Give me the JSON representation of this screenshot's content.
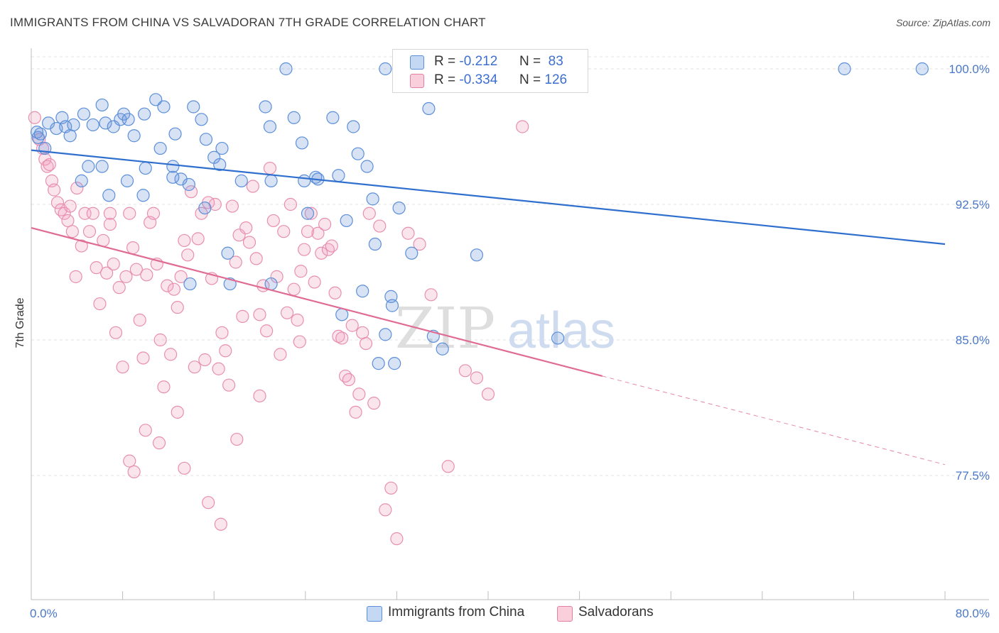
{
  "header": {
    "title": "IMMIGRANTS FROM CHINA VS SALVADORAN 7TH GRADE CORRELATION CHART",
    "source": "Source: ZipAtlas.com"
  },
  "watermark": {
    "zip": "ZIP",
    "atlas": "atlas"
  },
  "legend_top": {
    "rows": [
      {
        "r_label": "R =",
        "r_value": "-0.212",
        "n_label": "N =",
        "n_value": "83"
      },
      {
        "r_label": "R =",
        "r_value": "-0.334",
        "n_label": "N =",
        "n_value": "126"
      }
    ]
  },
  "chart_data": {
    "type": "scatter",
    "title": "IMMIGRANTS FROM CHINA VS SALVADORAN 7TH GRADE CORRELATION CHART",
    "ylabel": "7th Grade",
    "xlabel": "",
    "xlim": [
      0,
      80
    ],
    "ylim": [
      70.4,
      101.5
    ],
    "x_tick_labels": [
      "0.0%",
      "80.0%"
    ],
    "y_ticks": [
      77.5,
      85.0,
      92.5,
      100.0
    ],
    "y_tick_labels": [
      "77.5%",
      "85.0%",
      "92.5%",
      "100.0%"
    ],
    "grid": true,
    "colors": {
      "china": "#5b8fd9",
      "salvadoran": "#e87fa3",
      "china_line": "#2f6fce",
      "salvadoran_line": "#e06b93"
    },
    "series": [
      {
        "name": "Immigrants from China",
        "r": -0.212,
        "n": 83,
        "trend": {
          "x": [
            0,
            80
          ],
          "y": [
            95.5,
            90.3
          ]
        },
        "points": [
          [
            0.5,
            96.5
          ],
          [
            0.6,
            96.2
          ],
          [
            0.8,
            96.4
          ],
          [
            1.2,
            95.6
          ],
          [
            1.5,
            97.0
          ],
          [
            2.2,
            96.7
          ],
          [
            2.7,
            97.3
          ],
          [
            3.0,
            96.8
          ],
          [
            3.4,
            96.3
          ],
          [
            3.7,
            96.9
          ],
          [
            4.6,
            97.5
          ],
          [
            5.4,
            96.9
          ],
          [
            6.2,
            98.0
          ],
          [
            6.5,
            97.0
          ],
          [
            7.2,
            96.8
          ],
          [
            7.8,
            97.2
          ],
          [
            8.1,
            97.5
          ],
          [
            8.5,
            97.2
          ],
          [
            9.0,
            96.3
          ],
          [
            9.9,
            97.5
          ],
          [
            10.9,
            98.3
          ],
          [
            11.6,
            97.9
          ],
          [
            12.6,
            96.4
          ],
          [
            14.2,
            97.9
          ],
          [
            14.9,
            97.2
          ],
          [
            15.3,
            96.1
          ],
          [
            11.3,
            95.6
          ],
          [
            16.7,
            95.6
          ],
          [
            16.0,
            95.1
          ],
          [
            10.0,
            94.5
          ],
          [
            12.4,
            94.6
          ],
          [
            13.1,
            93.9
          ],
          [
            16.5,
            94.7
          ],
          [
            18.4,
            93.8
          ],
          [
            20.5,
            97.9
          ],
          [
            20.9,
            96.8
          ],
          [
            21.0,
            93.8
          ],
          [
            22.3,
            100.0
          ],
          [
            23.0,
            97.3
          ],
          [
            23.7,
            95.9
          ],
          [
            23.9,
            93.8
          ],
          [
            24.2,
            92.0
          ],
          [
            24.9,
            94.0
          ],
          [
            25.1,
            93.9
          ],
          [
            26.4,
            97.3
          ],
          [
            26.9,
            94.1
          ],
          [
            27.6,
            91.6
          ],
          [
            28.2,
            96.8
          ],
          [
            28.6,
            95.3
          ],
          [
            29.4,
            94.6
          ],
          [
            29.0,
            87.7
          ],
          [
            29.9,
            92.8
          ],
          [
            30.1,
            90.3
          ],
          [
            30.4,
            83.7
          ],
          [
            31.0,
            100.0
          ],
          [
            31.0,
            85.3
          ],
          [
            31.5,
            87.4
          ],
          [
            31.6,
            86.9
          ],
          [
            31.8,
            83.7
          ],
          [
            32.2,
            92.3
          ],
          [
            33.3,
            89.8
          ],
          [
            34.1,
            100.0
          ],
          [
            34.8,
            97.8
          ],
          [
            35.2,
            85.2
          ],
          [
            36.0,
            84.5
          ],
          [
            39.0,
            89.7
          ],
          [
            46.1,
            85.1
          ],
          [
            71.2,
            100.0
          ],
          [
            78.0,
            100.0
          ],
          [
            8.4,
            93.8
          ],
          [
            9.8,
            93.0
          ],
          [
            12.4,
            94.0
          ],
          [
            13.8,
            93.6
          ],
          [
            5.0,
            94.6
          ],
          [
            4.4,
            93.8
          ],
          [
            6.8,
            93.0
          ],
          [
            6.2,
            94.6
          ],
          [
            15.2,
            92.3
          ],
          [
            17.2,
            89.8
          ],
          [
            17.4,
            88.1
          ],
          [
            21.0,
            88.1
          ],
          [
            13.9,
            88.1
          ],
          [
            27.2,
            86.4
          ]
        ]
      },
      {
        "name": "Salvadorans",
        "r": -0.334,
        "n": 126,
        "trend": {
          "x": [
            0,
            50
          ],
          "y": [
            91.2,
            83.0
          ],
          "dashed_to": {
            "x": 80,
            "y": 78.1
          }
        },
        "points": [
          [
            0.3,
            97.3
          ],
          [
            0.7,
            96.1
          ],
          [
            1.0,
            95.6
          ],
          [
            1.2,
            95.0
          ],
          [
            1.4,
            94.6
          ],
          [
            1.6,
            94.7
          ],
          [
            1.8,
            93.8
          ],
          [
            2.0,
            93.3
          ],
          [
            2.3,
            92.6
          ],
          [
            2.6,
            92.2
          ],
          [
            2.9,
            92.0
          ],
          [
            3.2,
            91.6
          ],
          [
            3.4,
            92.4
          ],
          [
            3.6,
            91.0
          ],
          [
            3.9,
            88.5
          ],
          [
            4.0,
            93.4
          ],
          [
            4.4,
            90.2
          ],
          [
            4.7,
            92.0
          ],
          [
            5.1,
            91.0
          ],
          [
            5.4,
            92.0
          ],
          [
            5.7,
            89.0
          ],
          [
            6.0,
            87.0
          ],
          [
            6.3,
            90.5
          ],
          [
            6.6,
            88.7
          ],
          [
            6.9,
            91.4
          ],
          [
            7.2,
            89.2
          ],
          [
            7.4,
            85.4
          ],
          [
            7.7,
            87.9
          ],
          [
            8.0,
            83.5
          ],
          [
            8.3,
            88.5
          ],
          [
            8.6,
            92.0
          ],
          [
            8.9,
            90.1
          ],
          [
            9.2,
            88.9
          ],
          [
            9.5,
            86.1
          ],
          [
            9.8,
            84.0
          ],
          [
            10.1,
            88.6
          ],
          [
            10.4,
            91.5
          ],
          [
            10.7,
            92.0
          ],
          [
            11.0,
            89.2
          ],
          [
            11.3,
            85.0
          ],
          [
            11.6,
            82.4
          ],
          [
            11.9,
            88.0
          ],
          [
            12.2,
            84.2
          ],
          [
            12.5,
            87.8
          ],
          [
            12.8,
            86.8
          ],
          [
            13.1,
            88.5
          ],
          [
            13.4,
            90.5
          ],
          [
            13.7,
            89.7
          ],
          [
            14.0,
            93.2
          ],
          [
            14.3,
            83.5
          ],
          [
            14.6,
            90.6
          ],
          [
            14.9,
            92.0
          ],
          [
            15.2,
            83.9
          ],
          [
            15.5,
            92.6
          ],
          [
            15.8,
            88.4
          ],
          [
            16.1,
            92.5
          ],
          [
            16.4,
            83.4
          ],
          [
            16.7,
            85.4
          ],
          [
            17.0,
            84.4
          ],
          [
            17.3,
            82.5
          ],
          [
            17.6,
            92.4
          ],
          [
            17.9,
            89.3
          ],
          [
            18.2,
            90.8
          ],
          [
            18.5,
            86.3
          ],
          [
            18.8,
            91.2
          ],
          [
            19.1,
            90.4
          ],
          [
            19.4,
            93.5
          ],
          [
            19.7,
            89.5
          ],
          [
            20.0,
            86.4
          ],
          [
            20.3,
            88.0
          ],
          [
            20.6,
            85.5
          ],
          [
            20.9,
            94.5
          ],
          [
            21.2,
            91.6
          ],
          [
            21.5,
            88.5
          ],
          [
            21.8,
            84.2
          ],
          [
            22.1,
            91.0
          ],
          [
            22.4,
            86.5
          ],
          [
            22.7,
            92.5
          ],
          [
            23.0,
            87.8
          ],
          [
            23.3,
            86.1
          ],
          [
            23.6,
            88.8
          ],
          [
            23.9,
            90.0
          ],
          [
            24.2,
            91.0
          ],
          [
            24.5,
            92.0
          ],
          [
            24.8,
            88.2
          ],
          [
            25.1,
            90.9
          ],
          [
            25.4,
            89.8
          ],
          [
            25.7,
            91.4
          ],
          [
            26.0,
            90.0
          ],
          [
            26.3,
            90.2
          ],
          [
            26.6,
            87.6
          ],
          [
            26.9,
            85.2
          ],
          [
            27.2,
            85.1
          ],
          [
            27.5,
            83.0
          ],
          [
            27.8,
            82.8
          ],
          [
            28.1,
            85.8
          ],
          [
            28.4,
            81.0
          ],
          [
            28.7,
            82.0
          ],
          [
            29.0,
            85.4
          ],
          [
            29.3,
            84.8
          ],
          [
            29.6,
            92.0
          ],
          [
            30.0,
            81.5
          ],
          [
            30.5,
            91.3
          ],
          [
            31.0,
            75.6
          ],
          [
            31.5,
            76.8
          ],
          [
            32.0,
            74.0
          ],
          [
            33.0,
            90.9
          ],
          [
            34.0,
            90.3
          ],
          [
            35.0,
            87.5
          ],
          [
            36.5,
            78.0
          ],
          [
            38.0,
            83.3
          ],
          [
            39.0,
            82.9
          ],
          [
            40.0,
            82.0
          ],
          [
            43.0,
            96.8
          ],
          [
            20.0,
            81.9
          ],
          [
            23.5,
            84.9
          ],
          [
            12.8,
            81.0
          ],
          [
            10.0,
            80.0
          ],
          [
            9.0,
            77.7
          ],
          [
            13.4,
            77.9
          ],
          [
            15.5,
            76.0
          ],
          [
            16.6,
            74.8
          ],
          [
            18.0,
            79.5
          ],
          [
            11.2,
            79.3
          ],
          [
            8.6,
            78.3
          ],
          [
            6.9,
            92.0
          ]
        ]
      }
    ]
  },
  "legend_bottom": {
    "items": [
      {
        "label": "Immigrants from China"
      },
      {
        "label": "Salvadorans"
      }
    ]
  }
}
